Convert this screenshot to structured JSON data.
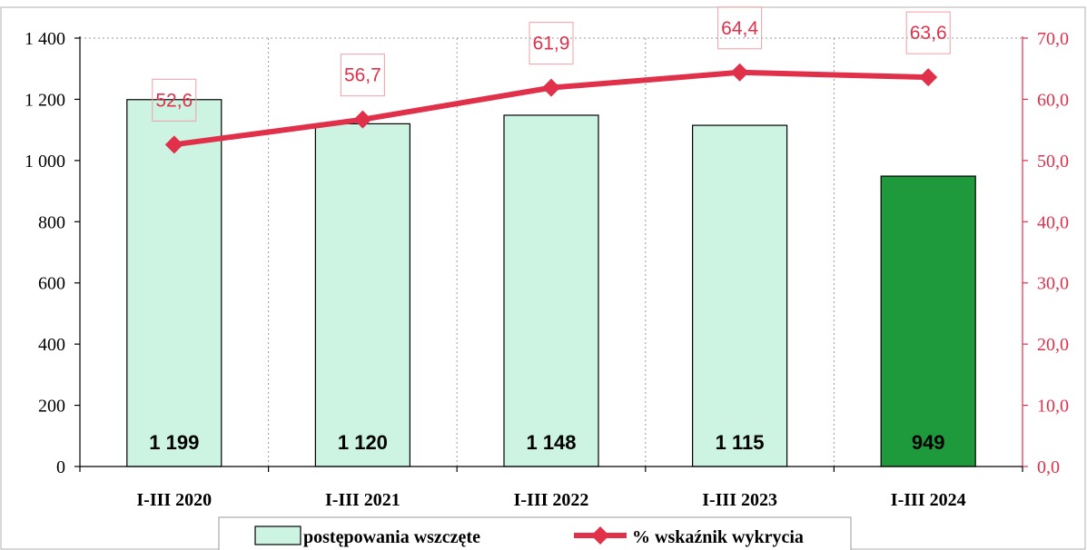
{
  "chart_data": {
    "type": "bar",
    "categories": [
      "I-III 2020",
      "I-III 2021",
      "I-III 2022",
      "I-III 2023",
      "I-III 2024"
    ],
    "series": [
      {
        "name": "postępowania wszczęte",
        "type": "bar",
        "axis": "left",
        "values": [
          1199,
          1120,
          1148,
          1115,
          949
        ],
        "labels": [
          "1 199",
          "1 120",
          "1 148",
          "1 115",
          "949"
        ],
        "colors": [
          "#cdf3e3",
          "#cdf3e3",
          "#cdf3e3",
          "#cdf3e3",
          "#1e9a3c"
        ]
      },
      {
        "name": "% wskaźnik wykrycia",
        "type": "line",
        "axis": "right",
        "values": [
          52.6,
          56.7,
          61.9,
          64.4,
          63.6
        ],
        "labels": [
          "52,6",
          "56,7",
          "61,9",
          "64,4",
          "63,6"
        ],
        "color": "#e0304a"
      }
    ],
    "y_left": {
      "ylim": [
        0,
        1400
      ],
      "ticks": [
        0,
        200,
        400,
        600,
        800,
        1000,
        1200,
        1400
      ],
      "tick_labels": [
        "0",
        "200",
        "400",
        "600",
        "800",
        "1 000",
        "1 200",
        "1 400"
      ]
    },
    "y_right": {
      "ylim": [
        0,
        70
      ],
      "ticks": [
        0,
        10,
        20,
        30,
        40,
        50,
        60,
        70
      ],
      "tick_labels": [
        "0,0",
        "10,0",
        "20,0",
        "30,0",
        "40,0",
        "50,0",
        "60,0",
        "70,0"
      ]
    },
    "grid": "vertical-dotted",
    "legend_position": "bottom",
    "title": "",
    "xlabel": "",
    "ylabel": ""
  }
}
